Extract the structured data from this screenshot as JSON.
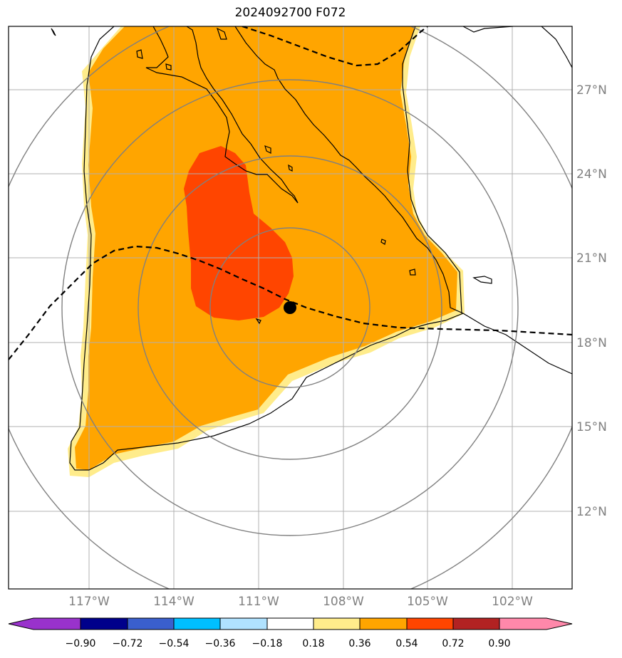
{
  "title": "2024092700 F072",
  "map": {
    "lat_labels": [
      "27°N",
      "24°N",
      "21°N",
      "18°N",
      "15°N",
      "12°N"
    ],
    "lon_labels": [
      "117°W",
      "114°W",
      "111°W",
      "108°W",
      "105°W",
      "102°W"
    ],
    "center_marker": "storm-center",
    "colors": {
      "land_outline": "#000000",
      "grid": "#b0b0b0",
      "range_rings": "#808080",
      "track": "#000000"
    }
  },
  "colorbar": {
    "ticks": [
      "−0.90",
      "−0.72",
      "−0.54",
      "−0.36",
      "−0.18",
      "0.18",
      "0.36",
      "0.54",
      "0.72",
      "0.90"
    ],
    "colors": [
      "#9932cc",
      "#00008b",
      "#3a5fcd",
      "#00bfff",
      "#b0e2ff",
      "#ffffff",
      "#ffec8b",
      "#ffa500",
      "#ff4500",
      "#b22222",
      "#ff88aa"
    ]
  }
}
